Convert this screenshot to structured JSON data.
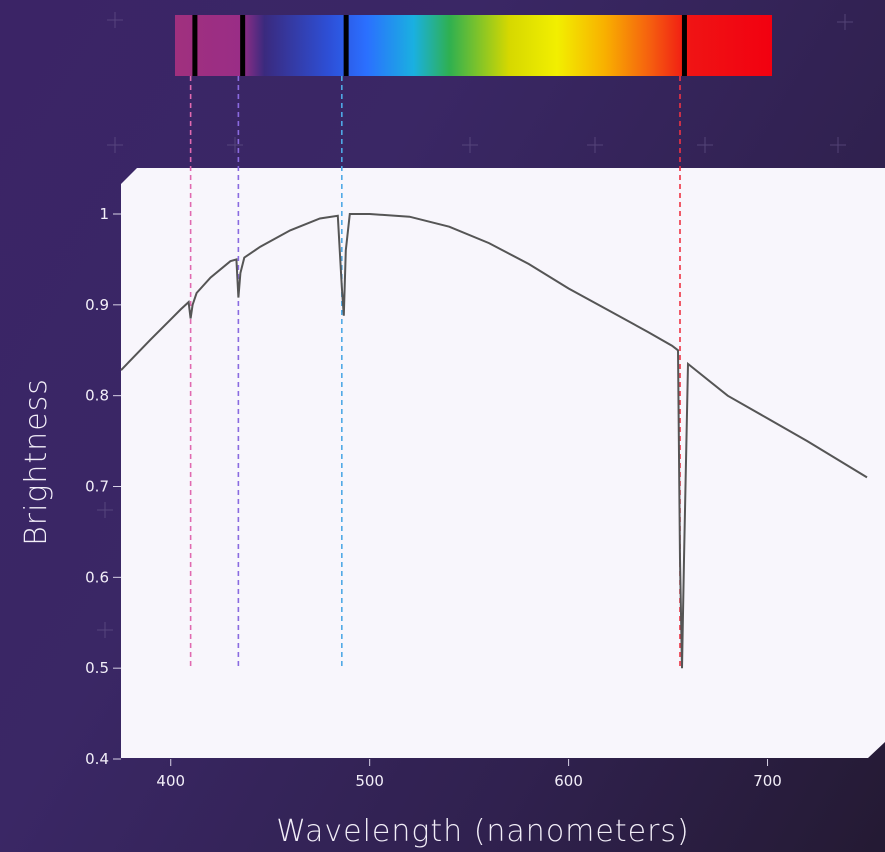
{
  "chart_data": {
    "type": "line",
    "xlabel": "Wavelength (nanometers)",
    "ylabel": "Brightness",
    "xlim": [
      375,
      750
    ],
    "ylim": [
      0.4,
      1.0
    ],
    "x_ticks": [
      400,
      500,
      600,
      700
    ],
    "y_ticks": [
      0.4,
      0.5,
      0.6,
      0.7,
      0.8,
      0.9,
      1.0
    ],
    "y_tick_labels": [
      "0.4",
      "0.5",
      "0.6",
      "0.7",
      "0.8",
      "0.9",
      "1"
    ],
    "grid": false,
    "line_color": "#555555",
    "series": [
      {
        "x": [
          375,
          390,
          400,
          405,
          409,
          410,
          411,
          413,
          420,
          430,
          433,
          434,
          435,
          437,
          445,
          460,
          475,
          484,
          486,
          487,
          488,
          490,
          500,
          520,
          540,
          560,
          580,
          600,
          620,
          640,
          652,
          655,
          656,
          657,
          658,
          660,
          680,
          700,
          720,
          750
        ],
        "y": [
          0.828,
          0.862,
          0.884,
          0.895,
          0.903,
          0.885,
          0.9,
          0.913,
          0.93,
          0.948,
          0.95,
          0.908,
          0.935,
          0.952,
          0.964,
          0.982,
          0.995,
          0.998,
          0.92,
          0.888,
          0.96,
          1.0,
          1.0,
          0.997,
          0.986,
          0.968,
          0.945,
          0.918,
          0.894,
          0.87,
          0.855,
          0.85,
          0.62,
          0.5,
          0.62,
          0.835,
          0.8,
          0.775,
          0.75,
          0.71
        ]
      }
    ],
    "spectrum": {
      "range": [
        400,
        700
      ],
      "absorption_lines": [
        {
          "wavelength": 410,
          "guide_color": "#e06ab0"
        },
        {
          "wavelength": 434,
          "guide_color": "#8a6ae0"
        },
        {
          "wavelength": 486,
          "guide_color": "#4fa9e6"
        },
        {
          "wavelength": 656,
          "guide_color": "#ee3344"
        }
      ]
    }
  }
}
